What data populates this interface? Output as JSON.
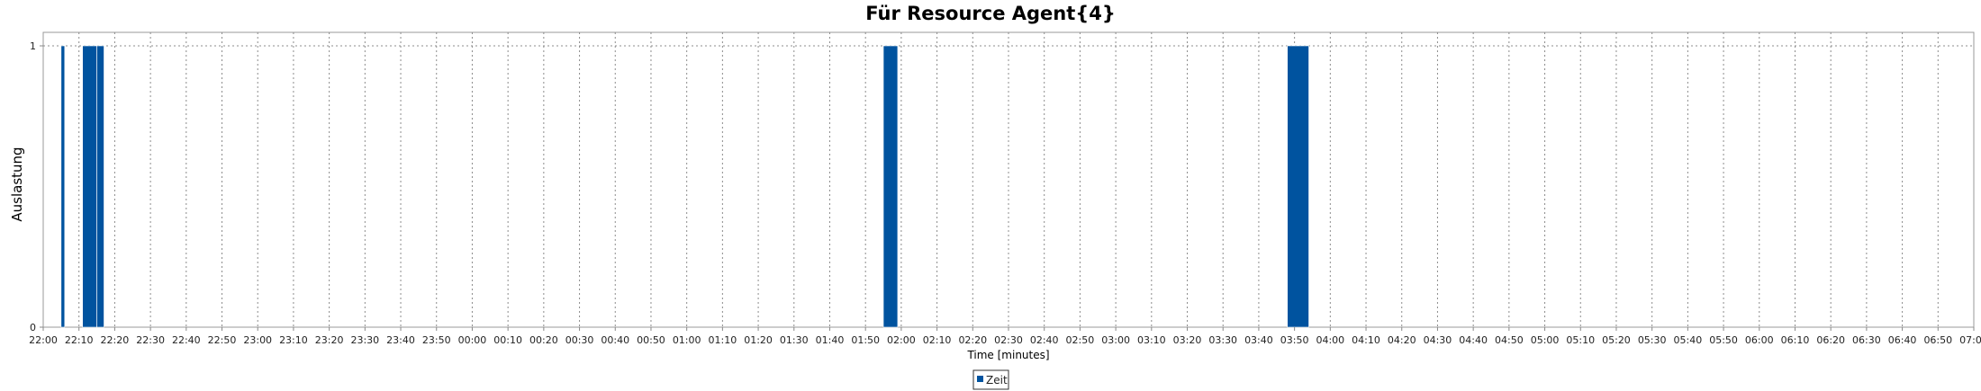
{
  "chart_data": {
    "type": "bar",
    "title": "Für Resource Agent{4}",
    "xlabel": "Time [minutes]",
    "ylabel": "Auslastung",
    "xlim": [
      "22:00",
      "07:00"
    ],
    "ylim": [
      0,
      1
    ],
    "yticks": [
      0,
      1
    ],
    "xtick_step_minutes": 10,
    "x_wraps_midnight": true,
    "grid": true,
    "legend_position": "bottom-center",
    "series": [
      {
        "name": "Zeit",
        "color": "#00539f",
        "bars": [
          {
            "start": "22:05",
            "end": "22:06",
            "value": 1
          },
          {
            "start": "22:11",
            "end": "22:15",
            "value": 1
          },
          {
            "start": "22:15",
            "end": "22:17",
            "value": 1
          },
          {
            "start": "01:55",
            "end": "01:59",
            "value": 1
          },
          {
            "start": "03:48",
            "end": "03:54",
            "value": 1
          }
        ]
      }
    ]
  }
}
